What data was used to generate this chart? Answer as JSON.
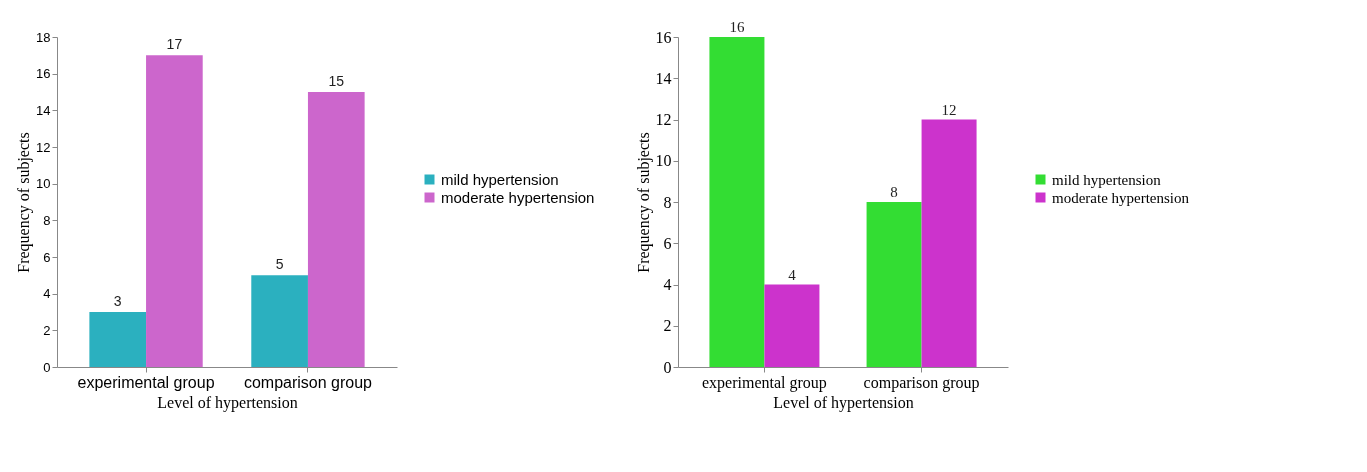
{
  "chart_data": [
    {
      "type": "bar",
      "categories": [
        "experimental group",
        "comparison group"
      ],
      "xlabel": "Level of hypertension",
      "ylabel": "Frequency of subjects",
      "ylim": [
        0,
        18
      ],
      "yticks": [
        0,
        2,
        4,
        6,
        8,
        10,
        12,
        14,
        16,
        18
      ],
      "grid": false,
      "legend": "right",
      "data_labels": true,
      "series": [
        {
          "name": "mild hypertension",
          "color": "#2bb0bf",
          "values": [
            3,
            5
          ]
        },
        {
          "name": "moderate hypertension",
          "color": "#cc66cc",
          "values": [
            17,
            15
          ]
        }
      ]
    },
    {
      "type": "bar",
      "categories": [
        "experimental group",
        "comparison group"
      ],
      "xlabel": "Level of hypertension",
      "ylabel": "Frequency of subjects",
      "ylim": [
        0,
        16
      ],
      "yticks": [
        0,
        2,
        4,
        6,
        8,
        10,
        12,
        14,
        16
      ],
      "grid": false,
      "legend": "right",
      "data_labels": true,
      "series": [
        {
          "name": "mild hypertension",
          "color": "#33dd33",
          "values": [
            16,
            8
          ]
        },
        {
          "name": "moderate hypertension",
          "color": "#cc33cc",
          "values": [
            4,
            12
          ]
        }
      ]
    }
  ]
}
